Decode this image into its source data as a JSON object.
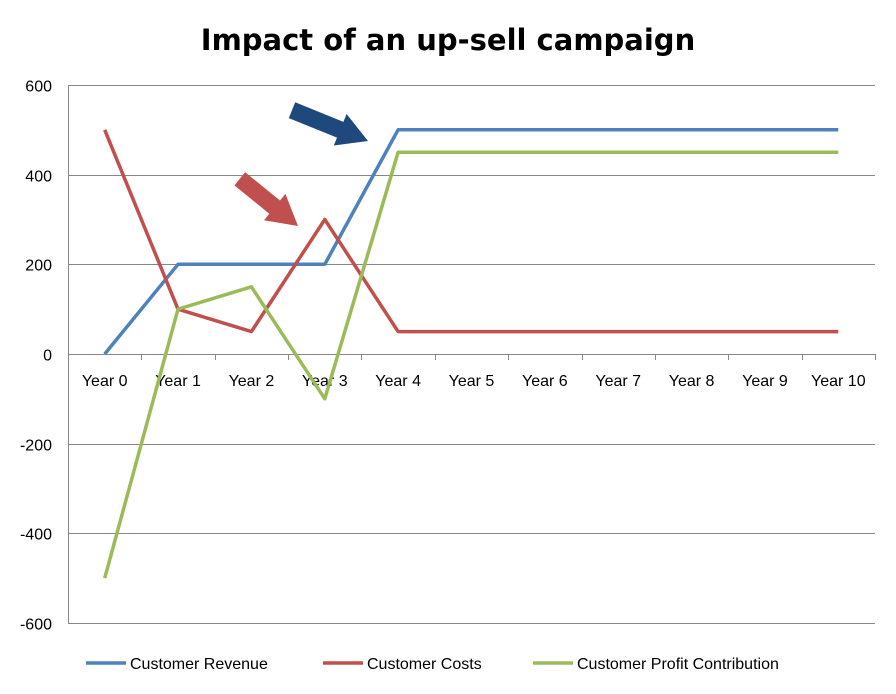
{
  "chart_data": {
    "type": "line",
    "title": "Impact of an up-sell campaign",
    "xlabel": "",
    "ylabel": "",
    "categories": [
      "Year 0",
      "Year 1",
      "Year 2",
      "Year 3",
      "Year 4",
      "Year 5",
      "Year 6",
      "Year 7",
      "Year 8",
      "Year 9",
      "Year 10"
    ],
    "ylim": [
      -600,
      600
    ],
    "yticks": [
      600,
      400,
      200,
      0,
      -200,
      -400,
      -600
    ],
    "grid": true,
    "legend": "bottom",
    "series": [
      {
        "name": "Customer Revenue",
        "color": "#4F81BD",
        "values": [
          0,
          200,
          200,
          200,
          500,
          500,
          500,
          500,
          500,
          500,
          500
        ]
      },
      {
        "name": "Customer Costs",
        "color": "#C0504D",
        "values": [
          500,
          100,
          50,
          300,
          50,
          50,
          50,
          50,
          50,
          50,
          50
        ]
      },
      {
        "name": "Customer Profit Contribution",
        "color": "#9BBB59",
        "values": [
          -500,
          100,
          150,
          -100,
          450,
          450,
          450,
          450,
          450,
          450,
          450
        ]
      }
    ],
    "annotations": [
      {
        "shape": "arrow",
        "color": "#1F497D",
        "points_to": {
          "x": "Year 4",
          "y": 500
        }
      },
      {
        "shape": "arrow",
        "color": "#C0504D",
        "points_to": {
          "x": "Year 3",
          "y": 300
        }
      }
    ]
  }
}
